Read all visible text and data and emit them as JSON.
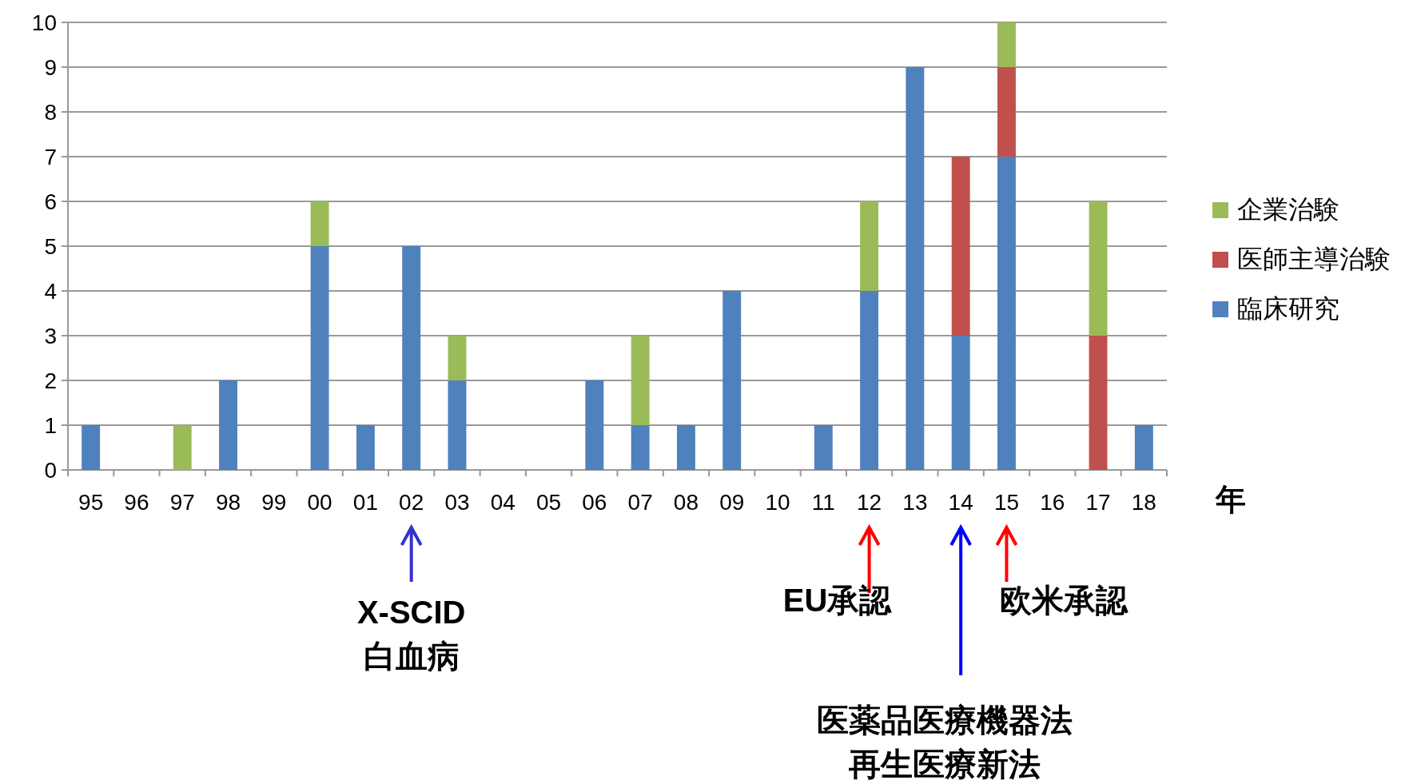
{
  "chart_data": {
    "type": "bar",
    "stacked": true,
    "xlabel": "年",
    "categories": [
      "95",
      "96",
      "97",
      "98",
      "99",
      "00",
      "01",
      "02",
      "03",
      "04",
      "05",
      "06",
      "07",
      "08",
      "09",
      "10",
      "11",
      "12",
      "13",
      "14",
      "15",
      "16",
      "17",
      "18"
    ],
    "series": [
      {
        "name": "臨床研究",
        "color": "#4f81bd",
        "values": [
          1,
          0,
          0,
          2,
          0,
          5,
          1,
          5,
          2,
          0,
          0,
          2,
          1,
          1,
          4,
          0,
          1,
          4,
          9,
          3,
          7,
          0,
          0,
          1
        ]
      },
      {
        "name": "医師主導治験",
        "color": "#c0504d",
        "values": [
          0,
          0,
          0,
          0,
          0,
          0,
          0,
          0,
          0,
          0,
          0,
          0,
          0,
          0,
          0,
          0,
          0,
          0,
          0,
          4,
          2,
          0,
          3,
          0
        ]
      },
      {
        "name": "企業治験",
        "color": "#9bbb59",
        "values": [
          0,
          0,
          1,
          0,
          0,
          1,
          0,
          0,
          1,
          0,
          0,
          0,
          2,
          0,
          0,
          0,
          0,
          2,
          0,
          0,
          1,
          0,
          3,
          0
        ]
      }
    ],
    "ylim": [
      0,
      10
    ],
    "yticks": [
      0,
      1,
      2,
      3,
      4,
      5,
      6,
      7,
      8,
      9,
      10
    ],
    "grid": "y",
    "legend": "right",
    "annotations": [
      "X-SCID",
      "白血病",
      "EU承認",
      "医薬品医療機器法",
      "再生医療新法",
      "欧米承認"
    ]
  }
}
